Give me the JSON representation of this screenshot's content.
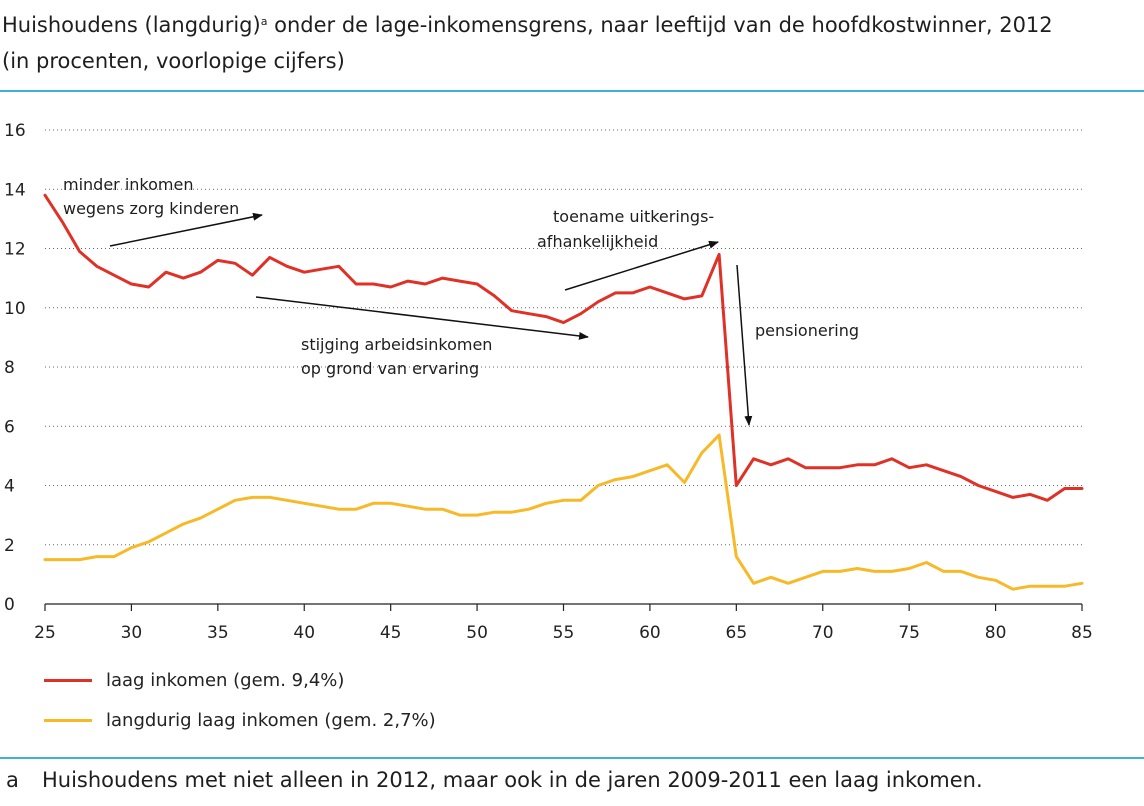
{
  "header": {
    "title_part1": "Huishoudens (langdurig)",
    "title_sup": "a",
    "title_part2": " onder de lage-inkomensgrens, naar leeftijd van de hoofdkostwinner, 2012",
    "subtitle": "(in procenten, voorlopige cijfers)"
  },
  "chart_data": {
    "type": "line",
    "title": "Huishoudens (langdurig) onder de lage-inkomensgrens, naar leeftijd van de hoofdkostwinner, 2012",
    "xlabel": "",
    "ylabel": "",
    "xlim": [
      25,
      85
    ],
    "ylim": [
      0,
      16
    ],
    "xticks": [
      25,
      30,
      35,
      40,
      45,
      50,
      55,
      60,
      65,
      70,
      75,
      80,
      85
    ],
    "yticks": [
      0,
      2,
      4,
      6,
      8,
      10,
      12,
      14,
      16
    ],
    "grid": "horizontal dotted",
    "series": [
      {
        "name": "laag inkomen (gem. 9,4%)",
        "color": "#e03127",
        "x": [
          25,
          26,
          27,
          28,
          29,
          30,
          31,
          32,
          33,
          34,
          35,
          36,
          37,
          38,
          39,
          40,
          41,
          42,
          43,
          44,
          45,
          46,
          47,
          48,
          49,
          50,
          51,
          52,
          53,
          54,
          55,
          56,
          57,
          58,
          59,
          60,
          61,
          62,
          63,
          64,
          65,
          66,
          67,
          68,
          69,
          70,
          71,
          72,
          73,
          74,
          75,
          76,
          77,
          78,
          79,
          80,
          81,
          82,
          83,
          84,
          85
        ],
        "values": [
          13.8,
          12.9,
          11.9,
          11.4,
          11.1,
          10.8,
          10.7,
          11.2,
          11.0,
          11.2,
          11.6,
          11.5,
          11.1,
          11.7,
          11.4,
          11.2,
          11.3,
          11.4,
          10.8,
          10.8,
          10.7,
          10.9,
          10.8,
          11.0,
          10.9,
          10.8,
          10.4,
          9.9,
          9.8,
          9.7,
          9.5,
          9.8,
          10.2,
          10.5,
          10.5,
          10.7,
          10.5,
          10.3,
          10.4,
          11.8,
          4.0,
          4.9,
          4.7,
          4.9,
          4.6,
          4.6,
          4.6,
          4.7,
          4.7,
          4.9,
          4.6,
          4.7,
          4.5,
          4.3,
          4.0,
          3.8,
          3.6,
          3.7,
          3.5,
          3.9,
          3.9
        ]
      },
      {
        "name": "langdurig laag inkomen (gem. 2,7%)",
        "color": "#f7b928",
        "x": [
          25,
          26,
          27,
          28,
          29,
          30,
          31,
          32,
          33,
          34,
          35,
          36,
          37,
          38,
          39,
          40,
          41,
          42,
          43,
          44,
          45,
          46,
          47,
          48,
          49,
          50,
          51,
          52,
          53,
          54,
          55,
          56,
          57,
          58,
          59,
          60,
          61,
          62,
          63,
          64,
          65,
          66,
          67,
          68,
          69,
          70,
          71,
          72,
          73,
          74,
          75,
          76,
          77,
          78,
          79,
          80,
          81,
          82,
          83,
          84,
          85
        ],
        "values": [
          1.5,
          1.5,
          1.5,
          1.6,
          1.6,
          1.9,
          2.1,
          2.4,
          2.7,
          2.9,
          3.2,
          3.5,
          3.6,
          3.6,
          3.5,
          3.4,
          3.3,
          3.2,
          3.2,
          3.4,
          3.4,
          3.3,
          3.2,
          3.2,
          3.0,
          3.0,
          3.1,
          3.1,
          3.2,
          3.4,
          3.5,
          3.5,
          4.0,
          4.2,
          4.3,
          4.5,
          4.7,
          4.1,
          5.1,
          5.7,
          1.6,
          0.7,
          0.9,
          0.7,
          0.9,
          1.1,
          1.1,
          1.2,
          1.1,
          1.1,
          1.2,
          1.4,
          1.1,
          1.1,
          0.9,
          0.8,
          0.5,
          0.6,
          0.6,
          0.6,
          0.7
        ]
      }
    ],
    "annotations": [
      {
        "id": "zorg",
        "lines": [
          "minder inkomen",
          "wegens zorg kinderen"
        ]
      },
      {
        "id": "ervaring",
        "lines": [
          "stijging arbeidsinkomen",
          "op grond van ervaring"
        ]
      },
      {
        "id": "uitkering",
        "lines": [
          "toename uitkerings-",
          "afhankelijkheid"
        ]
      },
      {
        "id": "pensioen",
        "lines": [
          "pensionering"
        ]
      }
    ]
  },
  "footnote": {
    "marker": "a",
    "text": "Huishoudens met niet alleen in 2012, maar ook in de jaren 2009-2011 een laag inkomen."
  }
}
